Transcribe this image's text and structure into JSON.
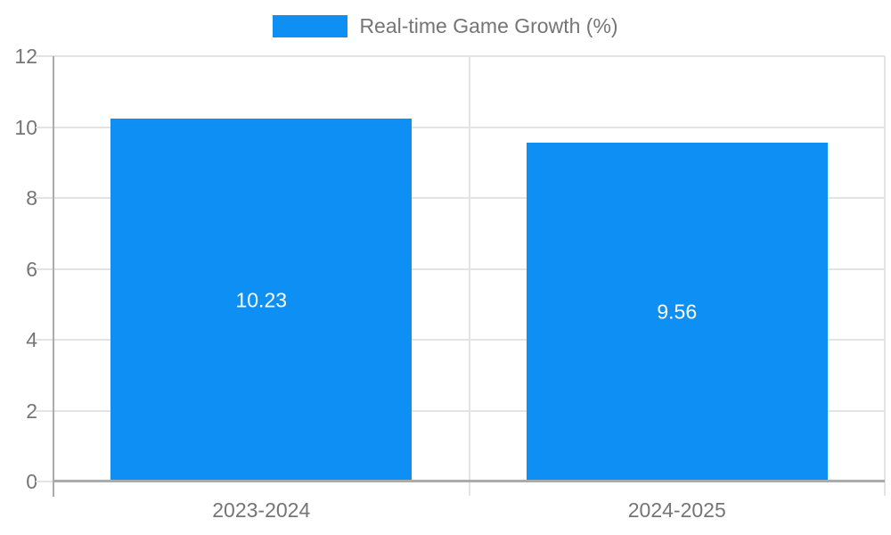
{
  "legend": {
    "label": "Real-time Game Growth (%)"
  },
  "colors": {
    "bar": "#0d8ff4",
    "grid": "#e3e3e3",
    "axis": "#ababab",
    "text": "#757575",
    "value_label": "#ffffff"
  },
  "chart_data": {
    "type": "bar",
    "categories": [
      "2023-2024",
      "2024-2025"
    ],
    "values": [
      10.23,
      9.56
    ],
    "value_labels": [
      "10.23",
      "9.56"
    ],
    "title": "",
    "legend": "Real-time Game Growth (%)",
    "xlabel": "",
    "ylabel": "",
    "ylim": [
      0,
      12
    ],
    "yticks": [
      0,
      2,
      4,
      6,
      8,
      10,
      12
    ],
    "grid": true,
    "legend_position": "top-center",
    "value_labels_inside_bars": true
  }
}
